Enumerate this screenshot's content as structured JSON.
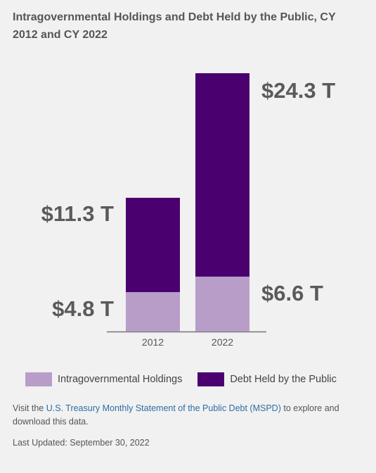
{
  "title": "Intragovernmental Holdings and Debt Held by the Public, CY 2012 and CY 2022",
  "chart_data": {
    "type": "bar",
    "stacked": true,
    "categories": [
      "2012",
      "2022"
    ],
    "series": [
      {
        "name": "Intragovernmental Holdings",
        "color": "#b89dc9",
        "values": [
          4.8,
          6.6
        ],
        "labels": [
          "$4.8 T",
          "$6.6 T"
        ]
      },
      {
        "name": "Debt Held by the Public",
        "color": "#4b0070",
        "values": [
          11.3,
          24.3
        ],
        "labels": [
          "$11.3 T",
          "$24.3 T"
        ]
      }
    ],
    "units": "trillions of dollars",
    "legend_position": "bottom",
    "grid": false
  },
  "footer": {
    "prefix": "Visit the ",
    "link_text": "U.S. Treasury Monthly Statement of the Public Debt (MSPD)",
    "suffix": " to explore and download this data.",
    "last_updated": "Last Updated: September 30, 2022"
  }
}
